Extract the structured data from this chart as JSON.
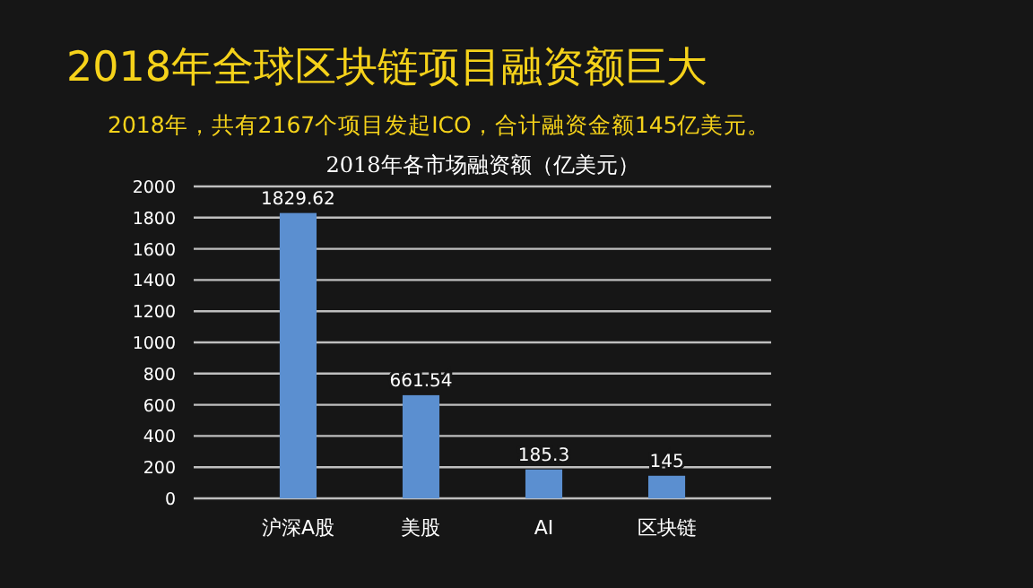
{
  "chart_data": {
    "type": "bar",
    "title": "2018年全球区块链项目融资额巨大",
    "subtitle": "2018年，共有2167个项目发起ICO，合计融资金额145亿美元。",
    "annotations": [
      "2018年各市场融资额（亿美元）"
    ],
    "categories": [
      "沪深A股",
      "美股",
      "AI",
      "区块链"
    ],
    "values": [
      1829.62,
      661.54,
      185.3,
      145
    ],
    "color": "#5b8fd0",
    "ylim": [
      0,
      2000
    ],
    "yticks": [
      0,
      200,
      400,
      600,
      800,
      1000,
      1200,
      1400,
      1600,
      1800,
      2000
    ],
    "grid": "y",
    "data_labels": true
  }
}
